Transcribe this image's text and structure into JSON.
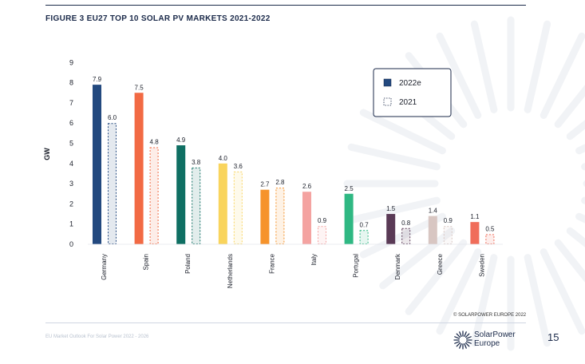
{
  "figure_title": "FIGURE 3 EU27 TOP 10 SOLAR PV MARKETS 2021-2022",
  "copyright": "© SOLARPOWER EUROPE 2022",
  "footer_text": "EU Market Outlook For Solar Power 2022 - 2026",
  "brand": {
    "line1": "SolarPower",
    "line2": "Europe"
  },
  "page_number": "15",
  "colors": {
    "dark_blue": "#23497f",
    "border": "#1b2a4a"
  },
  "chart_data": {
    "type": "bar",
    "ylabel": "GW",
    "xlabel": "",
    "ylim": [
      0,
      9
    ],
    "yticks": [
      "0",
      "1",
      "2",
      "3",
      "4",
      "5",
      "6",
      "7",
      "8",
      "9"
    ],
    "grid": false,
    "legend_placement": "top-right",
    "categories": [
      "Germany",
      "Spain",
      "Poland",
      "Netherlands",
      "France",
      "Italy",
      "Portugal",
      "Denmark",
      "Greece",
      "Sweden"
    ],
    "series": [
      {
        "name": "2022e",
        "style": "solid",
        "values": [
          7.9,
          7.5,
          4.9,
          4.0,
          2.7,
          2.6,
          2.5,
          1.5,
          1.4,
          1.1
        ],
        "labels": [
          "7.9",
          "7.5",
          "4.9",
          "4.0",
          "2.7",
          "2.6",
          "2.5",
          "1.5",
          "1.4",
          "1.1"
        ]
      },
      {
        "name": "2021",
        "style": "dashed",
        "values": [
          6.0,
          4.8,
          3.8,
          3.6,
          2.8,
          0.9,
          0.7,
          0.8,
          0.9,
          0.5
        ],
        "labels": [
          "6.0",
          "4.8",
          "3.8",
          "3.6",
          "2.8",
          "0.9",
          "0.7",
          "0.8",
          "0.9",
          "0.5"
        ]
      }
    ],
    "category_colors": [
      "#23497f",
      "#f26a44",
      "#0f6f63",
      "#f9d45c",
      "#f6932b",
      "#f4a3a1",
      "#2fb883",
      "#5a3a56",
      "#d8c6c2",
      "#f06d5a"
    ]
  }
}
